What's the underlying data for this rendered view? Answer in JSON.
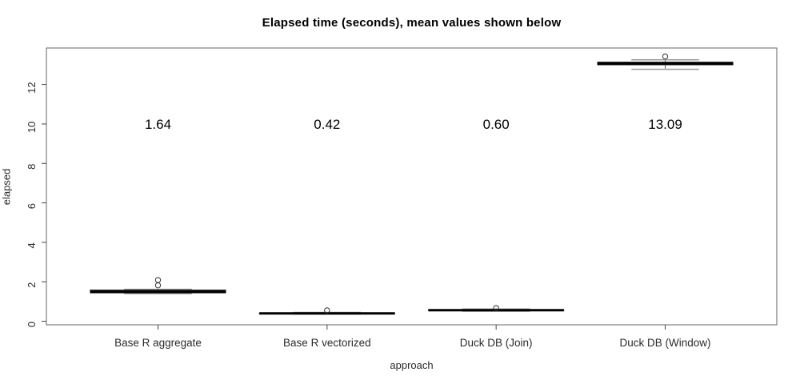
{
  "chart_data": {
    "type": "boxplot",
    "title": "Elapsed time (seconds), mean values shown below",
    "xlabel": "approach",
    "ylabel": "elapsed",
    "categories": [
      "Base R aggregate",
      "Base R vectorized",
      "Duck DB (Join)",
      "Duck DB (Window)"
    ],
    "means": [
      1.64,
      0.42,
      0.6,
      13.09
    ],
    "mean_labels": [
      "1.64",
      "0.42",
      "0.60",
      "13.09"
    ],
    "mean_label_y": 10,
    "y_ticks": [
      0,
      2,
      4,
      6,
      8,
      10,
      12
    ],
    "ylim": [
      -0.18,
      13.85
    ],
    "xlim": [
      0.34,
      4.66
    ],
    "boxes": [
      {
        "category": "Base R aggregate",
        "median": 1.5,
        "q1": 1.44,
        "q3": 1.58,
        "whisker_low": 1.4,
        "whisker_high": 1.62,
        "outliers": [
          1.82,
          2.09
        ]
      },
      {
        "category": "Base R vectorized",
        "median": 0.4,
        "q1": 0.38,
        "q3": 0.42,
        "whisker_low": 0.36,
        "whisker_high": 0.45,
        "outliers": [
          0.55
        ]
      },
      {
        "category": "Duck DB (Join)",
        "median": 0.56,
        "q1": 0.54,
        "q3": 0.58,
        "whisker_low": 0.51,
        "whisker_high": 0.62,
        "outliers": [
          0.67
        ]
      },
      {
        "category": "Duck DB (Window)",
        "median": 13.07,
        "q1": 13.0,
        "q3": 13.13,
        "whisker_low": 12.77,
        "whisker_high": 13.25,
        "outliers": [
          13.42
        ]
      }
    ],
    "layout_hints": {
      "grid": false,
      "legend": "none",
      "frame": true,
      "y_tick_label_rotation": -90
    },
    "colors": {
      "background": "#ffffff",
      "frame": "#666666",
      "box_stroke": "#000000",
      "median": "#000000",
      "staple": "#999999",
      "whisker": "#555555",
      "outlier": "#333333",
      "tick": "#444444",
      "tick_label": "#2b2b2b",
      "annotation": "#000000"
    }
  }
}
